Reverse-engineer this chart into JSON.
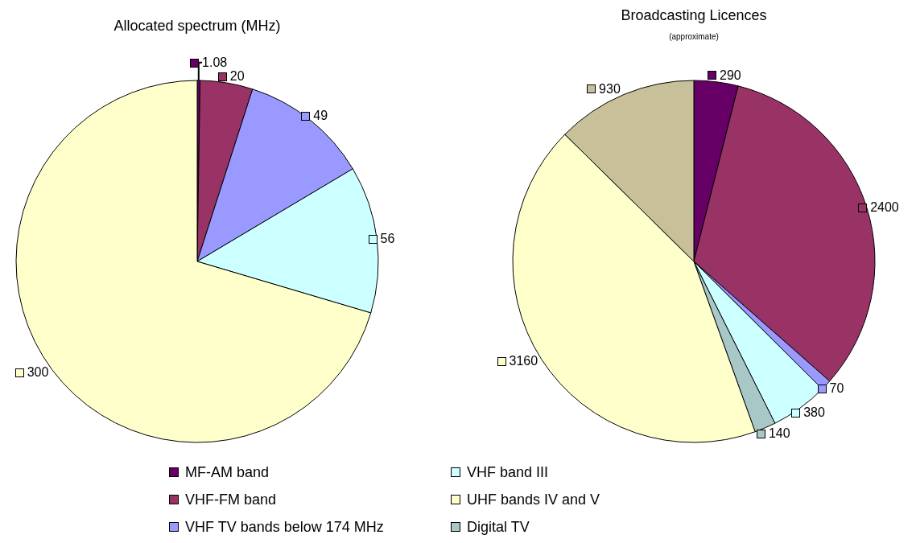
{
  "chart_data": [
    {
      "type": "pie",
      "title": "Allocated spectrum (MHz)",
      "categories": [
        "MF-AM band",
        "VHF-FM band",
        "VHF TV bands below 174 MHz",
        "VHF band III",
        "UHF bands IV and V"
      ],
      "values": [
        1.08,
        20,
        49,
        56,
        300
      ],
      "colors": [
        "#660066",
        "#993366",
        "#9999ff",
        "#ccffff",
        "#ffffcc"
      ],
      "data_labels": true,
      "legend": "bottom"
    },
    {
      "type": "pie",
      "title": "Broadcasting Licences",
      "subtitle": "(approximate)",
      "categories": [
        null,
        null,
        null,
        null,
        "Digital TV",
        null,
        null
      ],
      "values": [
        290,
        2400,
        70,
        380,
        140,
        3160,
        930
      ],
      "colors": [
        "#660066",
        "#993366",
        "#9999ff",
        "#ccffff",
        "#a8c8c8",
        "#ffffcc",
        "#c8c098"
      ],
      "data_labels": true,
      "legend": "bottom"
    }
  ]
}
